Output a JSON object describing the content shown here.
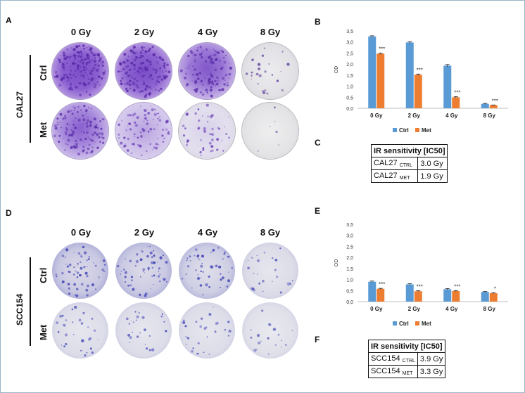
{
  "panels": {
    "A": "A",
    "B": "B",
    "C": "C",
    "D": "D",
    "E": "E",
    "F": "F"
  },
  "doses": [
    "0 Gy",
    "2 Gy",
    "4 Gy",
    "8 Gy"
  ],
  "rows": [
    "Ctrl",
    "Met"
  ],
  "cell_lines": [
    "CAL27",
    "SCC154"
  ],
  "colors": {
    "ctrl": "#5b9bd5",
    "met": "#ed7d31",
    "cal27_stain": "#6a3fb8",
    "scc154_stain": "#3a3fb0"
  },
  "chart_data": [
    {
      "type": "bar",
      "panel": "B",
      "categories": [
        "0 Gy",
        "2 Gy",
        "4 Gy",
        "8 Gy"
      ],
      "ylabel": "OD",
      "ylim": [
        0,
        3.5
      ],
      "yticks": [
        "0,0",
        "0,5",
        "1,0",
        "1,5",
        "2,0",
        "2,5",
        "3,0",
        "3,5"
      ],
      "series": [
        {
          "name": "Ctrl",
          "values": [
            3.25,
            2.98,
            1.93,
            0.2
          ],
          "errors": [
            0.03,
            0.04,
            0.05,
            0.02
          ]
        },
        {
          "name": "Met",
          "values": [
            2.47,
            1.52,
            0.5,
            0.14
          ],
          "errors": [
            0.03,
            0.03,
            0.03,
            0.01
          ]
        }
      ],
      "significance": [
        "***",
        "***",
        "***",
        "***"
      ],
      "legend": "bottom"
    },
    {
      "type": "bar",
      "panel": "E",
      "categories": [
        "0 Gy",
        "2 Gy",
        "4 Gy",
        "8 Gy"
      ],
      "ylabel": "OD",
      "ylim": [
        0,
        3.5
      ],
      "yticks": [
        "0,0",
        "0,5",
        "1,0",
        "1,5",
        "2,0",
        "2,5",
        "3,0",
        "3,5"
      ],
      "series": [
        {
          "name": "Ctrl",
          "values": [
            0.9,
            0.78,
            0.56,
            0.44
          ],
          "errors": [
            0.03,
            0.03,
            0.03,
            0.02
          ]
        },
        {
          "name": "Met",
          "values": [
            0.58,
            0.47,
            0.48,
            0.38
          ],
          "errors": [
            0.02,
            0.02,
            0.02,
            0.02
          ]
        }
      ],
      "significance": [
        "***",
        "***",
        "***",
        "*"
      ],
      "legend": "bottom"
    }
  ],
  "table_c": {
    "header": "IR sensitivity [IC50]",
    "rows": [
      {
        "name": "CAL27",
        "sub": "CTRL",
        "value": "3.0 Gy"
      },
      {
        "name": "CAL27",
        "sub": "MET",
        "value": "1.9 Gy"
      }
    ]
  },
  "table_f": {
    "header": "IR sensitivity [IC50]",
    "rows": [
      {
        "name": "SCC154",
        "sub": "CTRL",
        "value": "3.9 Gy"
      },
      {
        "name": "SCC154",
        "sub": "MET",
        "value": "3.3 Gy"
      }
    ]
  }
}
